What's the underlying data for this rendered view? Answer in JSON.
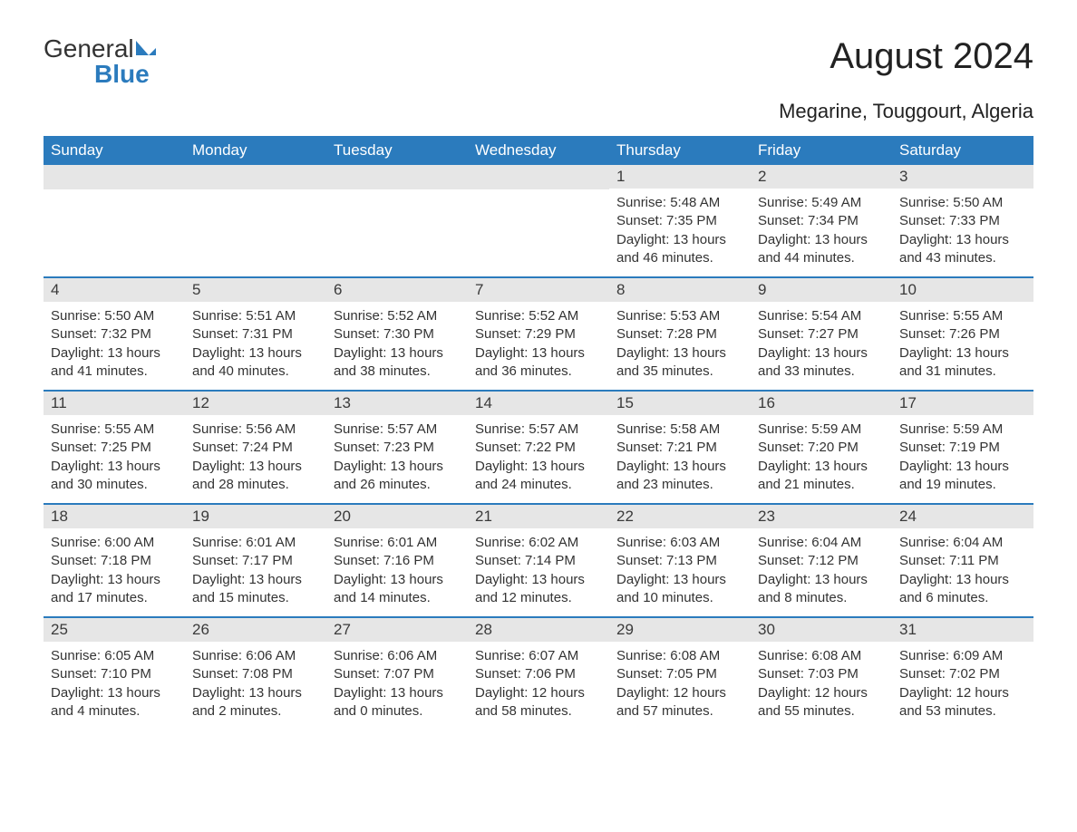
{
  "logo": {
    "word1": "General",
    "word2": "Blue"
  },
  "title": "August 2024",
  "subtitle": "Megarine, Touggourt, Algeria",
  "colors": {
    "header_bg": "#2b7bbd",
    "header_text": "#ffffff",
    "datecell_bg": "#e6e6e6",
    "week_border": "#2b7bbd",
    "body_text": "#333333",
    "page_bg": "#ffffff",
    "logo_accent": "#2b7bbd"
  },
  "typography": {
    "title_fontsize": 40,
    "subtitle_fontsize": 22,
    "dayheader_fontsize": 17,
    "datenum_fontsize": 17,
    "info_fontsize": 15,
    "font_family": "Arial"
  },
  "day_headers": [
    "Sunday",
    "Monday",
    "Tuesday",
    "Wednesday",
    "Thursday",
    "Friday",
    "Saturday"
  ],
  "type": "calendar",
  "columns": 7,
  "labels": {
    "sunrise": "Sunrise: ",
    "sunset": "Sunset: ",
    "daylight": "Daylight: "
  },
  "weeks": [
    [
      null,
      null,
      null,
      null,
      {
        "d": "1",
        "sr": "5:48 AM",
        "ss": "7:35 PM",
        "dl": "13 hours and 46 minutes."
      },
      {
        "d": "2",
        "sr": "5:49 AM",
        "ss": "7:34 PM",
        "dl": "13 hours and 44 minutes."
      },
      {
        "d": "3",
        "sr": "5:50 AM",
        "ss": "7:33 PM",
        "dl": "13 hours and 43 minutes."
      }
    ],
    [
      {
        "d": "4",
        "sr": "5:50 AM",
        "ss": "7:32 PM",
        "dl": "13 hours and 41 minutes."
      },
      {
        "d": "5",
        "sr": "5:51 AM",
        "ss": "7:31 PM",
        "dl": "13 hours and 40 minutes."
      },
      {
        "d": "6",
        "sr": "5:52 AM",
        "ss": "7:30 PM",
        "dl": "13 hours and 38 minutes."
      },
      {
        "d": "7",
        "sr": "5:52 AM",
        "ss": "7:29 PM",
        "dl": "13 hours and 36 minutes."
      },
      {
        "d": "8",
        "sr": "5:53 AM",
        "ss": "7:28 PM",
        "dl": "13 hours and 35 minutes."
      },
      {
        "d": "9",
        "sr": "5:54 AM",
        "ss": "7:27 PM",
        "dl": "13 hours and 33 minutes."
      },
      {
        "d": "10",
        "sr": "5:55 AM",
        "ss": "7:26 PM",
        "dl": "13 hours and 31 minutes."
      }
    ],
    [
      {
        "d": "11",
        "sr": "5:55 AM",
        "ss": "7:25 PM",
        "dl": "13 hours and 30 minutes."
      },
      {
        "d": "12",
        "sr": "5:56 AM",
        "ss": "7:24 PM",
        "dl": "13 hours and 28 minutes."
      },
      {
        "d": "13",
        "sr": "5:57 AM",
        "ss": "7:23 PM",
        "dl": "13 hours and 26 minutes."
      },
      {
        "d": "14",
        "sr": "5:57 AM",
        "ss": "7:22 PM",
        "dl": "13 hours and 24 minutes."
      },
      {
        "d": "15",
        "sr": "5:58 AM",
        "ss": "7:21 PM",
        "dl": "13 hours and 23 minutes."
      },
      {
        "d": "16",
        "sr": "5:59 AM",
        "ss": "7:20 PM",
        "dl": "13 hours and 21 minutes."
      },
      {
        "d": "17",
        "sr": "5:59 AM",
        "ss": "7:19 PM",
        "dl": "13 hours and 19 minutes."
      }
    ],
    [
      {
        "d": "18",
        "sr": "6:00 AM",
        "ss": "7:18 PM",
        "dl": "13 hours and 17 minutes."
      },
      {
        "d": "19",
        "sr": "6:01 AM",
        "ss": "7:17 PM",
        "dl": "13 hours and 15 minutes."
      },
      {
        "d": "20",
        "sr": "6:01 AM",
        "ss": "7:16 PM",
        "dl": "13 hours and 14 minutes."
      },
      {
        "d": "21",
        "sr": "6:02 AM",
        "ss": "7:14 PM",
        "dl": "13 hours and 12 minutes."
      },
      {
        "d": "22",
        "sr": "6:03 AM",
        "ss": "7:13 PM",
        "dl": "13 hours and 10 minutes."
      },
      {
        "d": "23",
        "sr": "6:04 AM",
        "ss": "7:12 PM",
        "dl": "13 hours and 8 minutes."
      },
      {
        "d": "24",
        "sr": "6:04 AM",
        "ss": "7:11 PM",
        "dl": "13 hours and 6 minutes."
      }
    ],
    [
      {
        "d": "25",
        "sr": "6:05 AM",
        "ss": "7:10 PM",
        "dl": "13 hours and 4 minutes."
      },
      {
        "d": "26",
        "sr": "6:06 AM",
        "ss": "7:08 PM",
        "dl": "13 hours and 2 minutes."
      },
      {
        "d": "27",
        "sr": "6:06 AM",
        "ss": "7:07 PM",
        "dl": "13 hours and 0 minutes."
      },
      {
        "d": "28",
        "sr": "6:07 AM",
        "ss": "7:06 PM",
        "dl": "12 hours and 58 minutes."
      },
      {
        "d": "29",
        "sr": "6:08 AM",
        "ss": "7:05 PM",
        "dl": "12 hours and 57 minutes."
      },
      {
        "d": "30",
        "sr": "6:08 AM",
        "ss": "7:03 PM",
        "dl": "12 hours and 55 minutes."
      },
      {
        "d": "31",
        "sr": "6:09 AM",
        "ss": "7:02 PM",
        "dl": "12 hours and 53 minutes."
      }
    ]
  ]
}
